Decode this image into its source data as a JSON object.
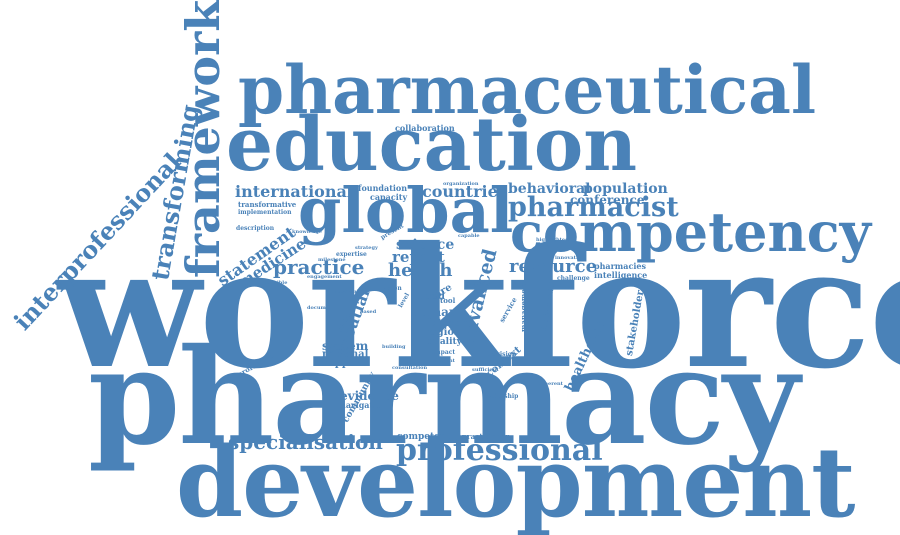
{
  "word_cloud": {
    "color": "#4a82b8",
    "background": "#ffffff",
    "words": [
      {
        "text": "workforce"
      },
      {
        "text": "pharmacy"
      },
      {
        "text": "development"
      },
      {
        "text": "pharmaceutical"
      },
      {
        "text": "education"
      },
      {
        "text": "global"
      },
      {
        "text": "competency"
      },
      {
        "text": "framework"
      },
      {
        "text": "transforming"
      },
      {
        "text": "interprofessional"
      },
      {
        "text": "professional"
      },
      {
        "text": "specialisation"
      },
      {
        "text": "pharmacist"
      },
      {
        "text": "international"
      },
      {
        "text": "practice"
      },
      {
        "text": "resource"
      },
      {
        "text": "health"
      },
      {
        "text": "statement"
      },
      {
        "text": "medicine"
      },
      {
        "text": "countrie"
      },
      {
        "text": "behavioral"
      },
      {
        "text": "population"
      },
      {
        "text": "conference"
      },
      {
        "text": "science"
      },
      {
        "text": "report"
      },
      {
        "text": "advanced"
      },
      {
        "text": "croatian"
      },
      {
        "text": "system"
      },
      {
        "text": "national"
      },
      {
        "text": "support"
      },
      {
        "text": "evidence"
      },
      {
        "text": "navigation"
      },
      {
        "text": "community"
      },
      {
        "text": "human"
      },
      {
        "text": "future"
      },
      {
        "text": "region"
      },
      {
        "text": "quality"
      },
      {
        "text": "healthcare"
      },
      {
        "text": "context"
      },
      {
        "text": "stakeholder"
      },
      {
        "text": "pharmacies"
      },
      {
        "text": "intelligence"
      },
      {
        "text": "collaboration"
      },
      {
        "text": "foundation"
      },
      {
        "text": "capacity"
      },
      {
        "text": "organization"
      },
      {
        "text": "transformative"
      },
      {
        "text": "implementation"
      },
      {
        "text": "description"
      },
      {
        "text": "expertise"
      },
      {
        "text": "profession"
      },
      {
        "text": "competent"
      },
      {
        "text": "practitioner"
      },
      {
        "text": "leadership"
      },
      {
        "text": "management"
      },
      {
        "text": "fundamental"
      },
      {
        "text": "challenge"
      },
      {
        "text": "vision"
      },
      {
        "text": "need"
      },
      {
        "text": "care"
      },
      {
        "text": "tool"
      },
      {
        "text": "level"
      },
      {
        "text": "impact"
      },
      {
        "text": "relevant"
      },
      {
        "text": "building"
      },
      {
        "text": "service"
      },
      {
        "text": "provision"
      },
      {
        "text": "engagement"
      },
      {
        "text": "milestone"
      },
      {
        "text": "responsible"
      },
      {
        "text": "country"
      },
      {
        "text": "academic"
      },
      {
        "text": "document"
      },
      {
        "text": "present"
      },
      {
        "text": "highlighted"
      },
      {
        "text": "capable"
      },
      {
        "text": "strategy"
      },
      {
        "text": "based"
      },
      {
        "text": "activity"
      },
      {
        "text": "sufficient"
      },
      {
        "text": "innovation"
      },
      {
        "text": "knowledge"
      },
      {
        "text": "consultation"
      },
      {
        "text": "coherent"
      }
    ]
  }
}
